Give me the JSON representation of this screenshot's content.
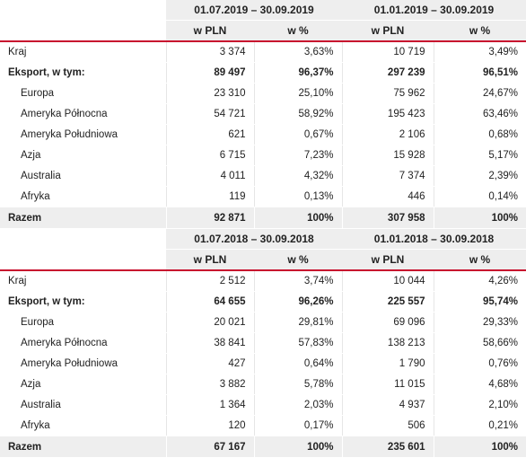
{
  "sections": [
    {
      "periods": [
        "01.07.2019 – 30.09.2019",
        "01.01.2019 – 30.09.2019"
      ],
      "units": [
        "w PLN",
        "w %",
        "w PLN",
        "w %"
      ],
      "rows": [
        {
          "label": "Kraj",
          "values": [
            "3 374",
            "3,63%",
            "10 719",
            "3,49%"
          ]
        },
        {
          "label": "Eksport, w tym:",
          "values": [
            "89 497",
            "96,37%",
            "297 239",
            "96,51%"
          ]
        },
        {
          "label": "Europa",
          "values": [
            "23 310",
            "25,10%",
            "75 962",
            "24,67%"
          ]
        },
        {
          "label": "Ameryka Północna",
          "values": [
            "54 721",
            "58,92%",
            "195 423",
            "63,46%"
          ]
        },
        {
          "label": "Ameryka Południowa",
          "values": [
            "621",
            "0,67%",
            "2 106",
            "0,68%"
          ]
        },
        {
          "label": "Azja",
          "values": [
            "6 715",
            "7,23%",
            "15 928",
            "5,17%"
          ]
        },
        {
          "label": "Australia",
          "values": [
            "4 011",
            "4,32%",
            "7 374",
            "2,39%"
          ]
        },
        {
          "label": "Afryka",
          "values": [
            "119",
            "0,13%",
            "446",
            "0,14%"
          ]
        },
        {
          "label": "Razem",
          "values": [
            "92 871",
            "100%",
            "307 958",
            "100%"
          ]
        }
      ]
    },
    {
      "periods": [
        "01.07.2018 – 30.09.2018",
        "01.01.2018 – 30.09.2018"
      ],
      "units": [
        "w PLN",
        "w %",
        "w PLN",
        "w %"
      ],
      "rows": [
        {
          "label": "Kraj",
          "values": [
            "2 512",
            "3,74%",
            "10 044",
            "4,26%"
          ]
        },
        {
          "label": "Eksport, w tym:",
          "values": [
            "64 655",
            "96,26%",
            "225 557",
            "95,74%"
          ]
        },
        {
          "label": "Europa",
          "values": [
            "20 021",
            "29,81%",
            "69 096",
            "29,33%"
          ]
        },
        {
          "label": "Ameryka Północna",
          "values": [
            "38 841",
            "57,83%",
            "138 213",
            "58,66%"
          ]
        },
        {
          "label": "Ameryka Południowa",
          "values": [
            "427",
            "0,64%",
            "1 790",
            "0,76%"
          ]
        },
        {
          "label": "Azja",
          "values": [
            "3 882",
            "5,78%",
            "11 015",
            "4,68%"
          ]
        },
        {
          "label": "Australia",
          "values": [
            "1 364",
            "2,03%",
            "4 937",
            "2,10%"
          ]
        },
        {
          "label": "Afryka",
          "values": [
            "120",
            "0,17%",
            "506",
            "0,21%"
          ]
        },
        {
          "label": "Razem",
          "values": [
            "67 167",
            "100%",
            "235 601",
            "100%"
          ]
        }
      ]
    }
  ],
  "colors": {
    "accent_rule": "#c8102e",
    "header_bg": "#eeeeee",
    "total_bg": "#eeeeee"
  }
}
